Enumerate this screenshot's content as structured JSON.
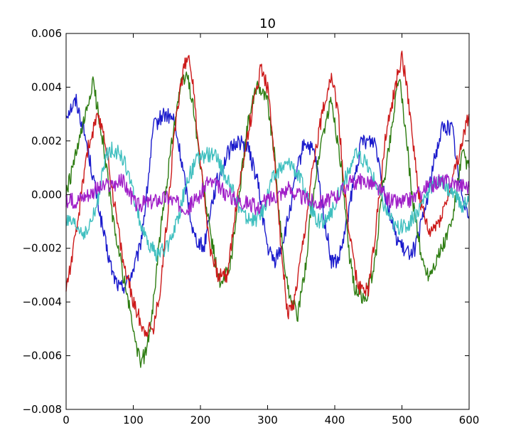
{
  "chart_data": {
    "type": "line",
    "title": "10",
    "xlabel": "",
    "ylabel": "",
    "xlim": [
      0,
      600
    ],
    "ylim": [
      -0.008,
      0.006
    ],
    "x_ticks": [
      0,
      100,
      200,
      300,
      400,
      500,
      600
    ],
    "x_tick_labels": [
      "0",
      "100",
      "200",
      "300",
      "400",
      "500",
      "600"
    ],
    "y_ticks": [
      -0.008,
      -0.006,
      -0.004,
      -0.002,
      0.0,
      0.002,
      0.004,
      0.006
    ],
    "y_tick_labels": [
      "−0.008",
      "−0.006",
      "−0.004",
      "−0.002",
      "0.000",
      "0.002",
      "0.004",
      "0.006"
    ],
    "grid": false,
    "legend": "none",
    "series": [
      {
        "color": "#1a1acc",
        "points": [
          [
            0,
            0.003
          ],
          [
            15,
            0.0035
          ],
          [
            30,
            0.002
          ],
          [
            45,
            0.0
          ],
          [
            60,
            -0.002
          ],
          [
            70,
            -0.003
          ],
          [
            80,
            -0.0035
          ],
          [
            90,
            -0.0033
          ],
          [
            100,
            -0.0028
          ],
          [
            110,
            -0.002
          ],
          [
            120,
            0.0
          ],
          [
            130,
            0.0025
          ],
          [
            145,
            0.003
          ],
          [
            160,
            0.0028
          ],
          [
            170,
            0.0015
          ],
          [
            180,
            0.0
          ],
          [
            190,
            -0.0015
          ],
          [
            205,
            -0.002
          ],
          [
            215,
            -0.0005
          ],
          [
            225,
            0.0005
          ],
          [
            240,
            0.0015
          ],
          [
            255,
            0.002
          ],
          [
            270,
            0.0018
          ],
          [
            285,
            0.0005
          ],
          [
            300,
            -0.002
          ],
          [
            310,
            -0.0025
          ],
          [
            320,
            -0.002
          ],
          [
            330,
            -0.001
          ],
          [
            345,
            0.001
          ],
          [
            355,
            0.002
          ],
          [
            370,
            0.0015
          ],
          [
            385,
            -0.001
          ],
          [
            395,
            -0.0025
          ],
          [
            405,
            -0.0025
          ],
          [
            415,
            -0.0015
          ],
          [
            425,
            0.0
          ],
          [
            440,
            0.002
          ],
          [
            460,
            0.002
          ],
          [
            475,
            0.0
          ],
          [
            490,
            -0.0015
          ],
          [
            505,
            -0.0022
          ],
          [
            520,
            -0.002
          ],
          [
            535,
            -0.0005
          ],
          [
            550,
            0.0015
          ],
          [
            560,
            0.0025
          ],
          [
            575,
            0.0025
          ],
          [
            585,
            0.0005
          ],
          [
            600,
            -0.0008
          ]
        ]
      },
      {
        "color": "#2e7d12",
        "points": [
          [
            0,
            0.0
          ],
          [
            15,
            0.0015
          ],
          [
            30,
            0.003
          ],
          [
            40,
            0.0042
          ],
          [
            55,
            0.002
          ],
          [
            70,
            -0.001
          ],
          [
            85,
            -0.003
          ],
          [
            100,
            -0.005
          ],
          [
            110,
            -0.0063
          ],
          [
            120,
            -0.0058
          ],
          [
            130,
            -0.004
          ],
          [
            140,
            -0.0015
          ],
          [
            150,
            0.0005
          ],
          [
            160,
            0.0025
          ],
          [
            170,
            0.004
          ],
          [
            180,
            0.0045
          ],
          [
            190,
            0.0032
          ],
          [
            200,
            0.001
          ],
          [
            215,
            -0.0015
          ],
          [
            230,
            -0.0035
          ],
          [
            245,
            -0.0025
          ],
          [
            255,
            -0.0005
          ],
          [
            270,
            0.0025
          ],
          [
            285,
            0.0042
          ],
          [
            300,
            0.0035
          ],
          [
            310,
            0.0015
          ],
          [
            320,
            -0.0015
          ],
          [
            330,
            -0.0035
          ],
          [
            345,
            -0.0045
          ],
          [
            355,
            -0.003
          ],
          [
            365,
            -0.0005
          ],
          [
            380,
            0.002
          ],
          [
            395,
            0.0035
          ],
          [
            410,
            0.001
          ],
          [
            420,
            -0.002
          ],
          [
            430,
            -0.0035
          ],
          [
            445,
            -0.004
          ],
          [
            460,
            -0.0025
          ],
          [
            470,
            0.0
          ],
          [
            485,
            0.0025
          ],
          [
            495,
            0.0045
          ],
          [
            505,
            0.0025
          ],
          [
            515,
            0.0
          ],
          [
            530,
            -0.0025
          ],
          [
            540,
            -0.003
          ],
          [
            560,
            -0.002
          ],
          [
            575,
            -0.001
          ],
          [
            590,
            0.0015
          ],
          [
            600,
            0.001
          ]
        ]
      },
      {
        "color": "#cc1a1a",
        "points": [
          [
            0,
            -0.0035
          ],
          [
            15,
            -0.0015
          ],
          [
            30,
            0.0015
          ],
          [
            45,
            0.0028
          ],
          [
            55,
            0.0025
          ],
          [
            70,
            0.0
          ],
          [
            85,
            -0.0025
          ],
          [
            100,
            -0.004
          ],
          [
            115,
            -0.005
          ],
          [
            130,
            -0.005
          ],
          [
            140,
            -0.0035
          ],
          [
            150,
            -0.001
          ],
          [
            160,
            0.002
          ],
          [
            170,
            0.004
          ],
          [
            180,
            0.0052
          ],
          [
            185,
            0.005
          ],
          [
            195,
            0.0025
          ],
          [
            205,
            0.0
          ],
          [
            215,
            -0.002
          ],
          [
            225,
            -0.003
          ],
          [
            240,
            -0.003
          ],
          [
            250,
            -0.001
          ],
          [
            265,
            0.0015
          ],
          [
            280,
            0.0035
          ],
          [
            290,
            0.0048
          ],
          [
            300,
            0.004
          ],
          [
            310,
            0.0015
          ],
          [
            320,
            -0.002
          ],
          [
            330,
            -0.0045
          ],
          [
            340,
            -0.004
          ],
          [
            355,
            -0.0015
          ],
          [
            370,
            0.0015
          ],
          [
            385,
            0.0035
          ],
          [
            395,
            0.0045
          ],
          [
            405,
            0.003
          ],
          [
            415,
            0.0
          ],
          [
            425,
            -0.002
          ],
          [
            435,
            -0.0035
          ],
          [
            450,
            -0.0035
          ],
          [
            460,
            -0.0015
          ],
          [
            475,
            0.002
          ],
          [
            490,
            0.004
          ],
          [
            500,
            0.0052
          ],
          [
            510,
            0.0035
          ],
          [
            525,
            0.0
          ],
          [
            540,
            -0.0015
          ],
          [
            555,
            -0.001
          ],
          [
            570,
            0.0
          ],
          [
            585,
            0.0015
          ],
          [
            600,
            0.003
          ]
        ]
      },
      {
        "color": "#3fbfbf",
        "points": [
          [
            0,
            -0.001
          ],
          [
            15,
            -0.0012
          ],
          [
            30,
            -0.0015
          ],
          [
            45,
            -0.0005
          ],
          [
            60,
            0.0015
          ],
          [
            70,
            0.0017
          ],
          [
            80,
            0.0015
          ],
          [
            90,
            0.001
          ],
          [
            100,
            0.0
          ],
          [
            110,
            -0.001
          ],
          [
            120,
            -0.0018
          ],
          [
            135,
            -0.0022
          ],
          [
            150,
            -0.002
          ],
          [
            165,
            -0.001
          ],
          [
            180,
            0.0005
          ],
          [
            195,
            0.0013
          ],
          [
            210,
            0.0015
          ],
          [
            220,
            0.0015
          ],
          [
            235,
            0.0008
          ],
          [
            250,
            0.0
          ],
          [
            265,
            -0.0008
          ],
          [
            280,
            -0.001
          ],
          [
            295,
            -0.0005
          ],
          [
            305,
            0.0005
          ],
          [
            320,
            0.001
          ],
          [
            335,
            0.0012
          ],
          [
            350,
            0.0005
          ],
          [
            365,
            -0.0005
          ],
          [
            375,
            -0.001
          ],
          [
            390,
            -0.001
          ],
          [
            405,
            0.0
          ],
          [
            420,
            0.0008
          ],
          [
            430,
            0.0015
          ],
          [
            445,
            0.0012
          ],
          [
            460,
            0.0005
          ],
          [
            475,
            -0.0005
          ],
          [
            490,
            -0.0012
          ],
          [
            505,
            -0.0012
          ],
          [
            520,
            -0.0008
          ],
          [
            535,
            0.0
          ],
          [
            550,
            0.0005
          ],
          [
            565,
            0.0003
          ],
          [
            580,
            0.0
          ],
          [
            590,
            -0.0005
          ],
          [
            600,
            0.0
          ]
        ]
      },
      {
        "color": "#a020c8",
        "points": [
          [
            0,
            -0.0003
          ],
          [
            15,
            -0.0002
          ],
          [
            30,
            0.0
          ],
          [
            45,
            0.0002
          ],
          [
            60,
            0.0003
          ],
          [
            75,
            0.0004
          ],
          [
            85,
            0.0005
          ],
          [
            95,
            0.0
          ],
          [
            105,
            -0.0004
          ],
          [
            120,
            -0.0003
          ],
          [
            135,
            -0.0002
          ],
          [
            150,
            -0.0001
          ],
          [
            165,
            -0.0003
          ],
          [
            180,
            -0.0005
          ],
          [
            190,
            -0.0003
          ],
          [
            200,
            0.0
          ],
          [
            210,
            0.0005
          ],
          [
            225,
            0.0003
          ],
          [
            240,
            0.0
          ],
          [
            255,
            -0.0002
          ],
          [
            270,
            -0.0003
          ],
          [
            285,
            -0.0005
          ],
          [
            300,
            -0.0002
          ],
          [
            315,
            0.0
          ],
          [
            330,
            0.0002
          ],
          [
            345,
            0.0
          ],
          [
            360,
            -0.0002
          ],
          [
            375,
            -0.0003
          ],
          [
            390,
            -0.0002
          ],
          [
            405,
            0.0
          ],
          [
            420,
            0.0004
          ],
          [
            435,
            0.0005
          ],
          [
            450,
            0.0005
          ],
          [
            465,
            0.0002
          ],
          [
            480,
            -0.0002
          ],
          [
            495,
            -0.0003
          ],
          [
            510,
            -0.0002
          ],
          [
            525,
            0.0
          ],
          [
            540,
            0.0003
          ],
          [
            555,
            0.0005
          ],
          [
            570,
            0.0005
          ],
          [
            585,
            0.0004
          ],
          [
            600,
            0.0003
          ]
        ]
      }
    ]
  }
}
